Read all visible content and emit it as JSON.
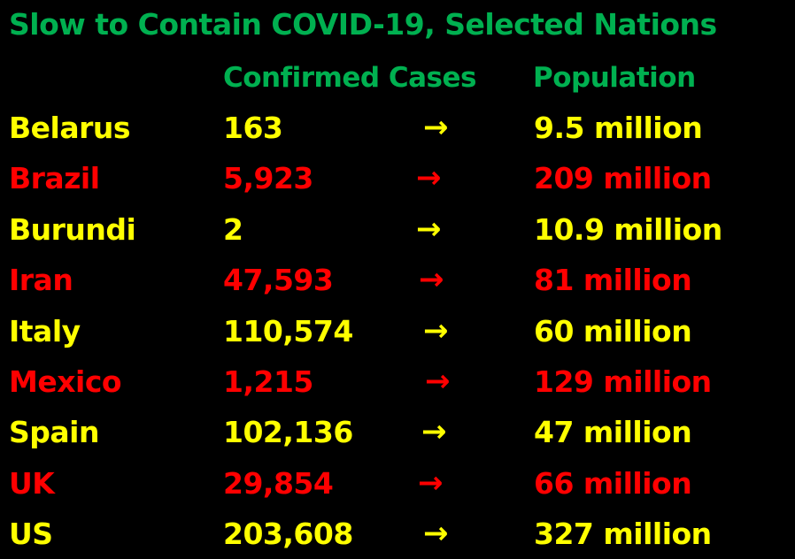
{
  "title": "Slow to Contain COVID-19, Selected Nations",
  "headers": {
    "cases": "Confirmed Cases",
    "population": "Population"
  },
  "colors": {
    "green": "#00B050",
    "yellow": "#FFFF00",
    "red": "#FF0000"
  },
  "rows": [
    {
      "country": "Belarus",
      "cases": "163",
      "arrow": "→",
      "population": "9.5 million",
      "color": "yellow"
    },
    {
      "country": "Brazil",
      "cases": "5,923",
      "arrow": "→",
      "population": "209 million",
      "color": "red"
    },
    {
      "country": "Burundi",
      "cases": "2",
      "arrow": "→",
      "population": "10.9 million",
      "color": "yellow"
    },
    {
      "country": "Iran",
      "cases": "47,593",
      "arrow": "→",
      "population": "81 million",
      "color": "red"
    },
    {
      "country": "Italy",
      "cases": "110,574",
      "arrow": "→",
      "population": "60 million",
      "color": "yellow"
    },
    {
      "country": "Mexico",
      "cases": "1,215",
      "arrow": "→",
      "population": "129 million",
      "color": "red"
    },
    {
      "country": "Spain",
      "cases": "102,136",
      "arrow": "→",
      "population": "47 million",
      "color": "yellow"
    },
    {
      "country": "UK",
      "cases": "29,854",
      "arrow": "→",
      "population": "66 million",
      "color": "red"
    },
    {
      "country": "US",
      "cases": "203,608",
      "arrow": "→",
      "population": "327 million",
      "color": "yellow"
    }
  ]
}
